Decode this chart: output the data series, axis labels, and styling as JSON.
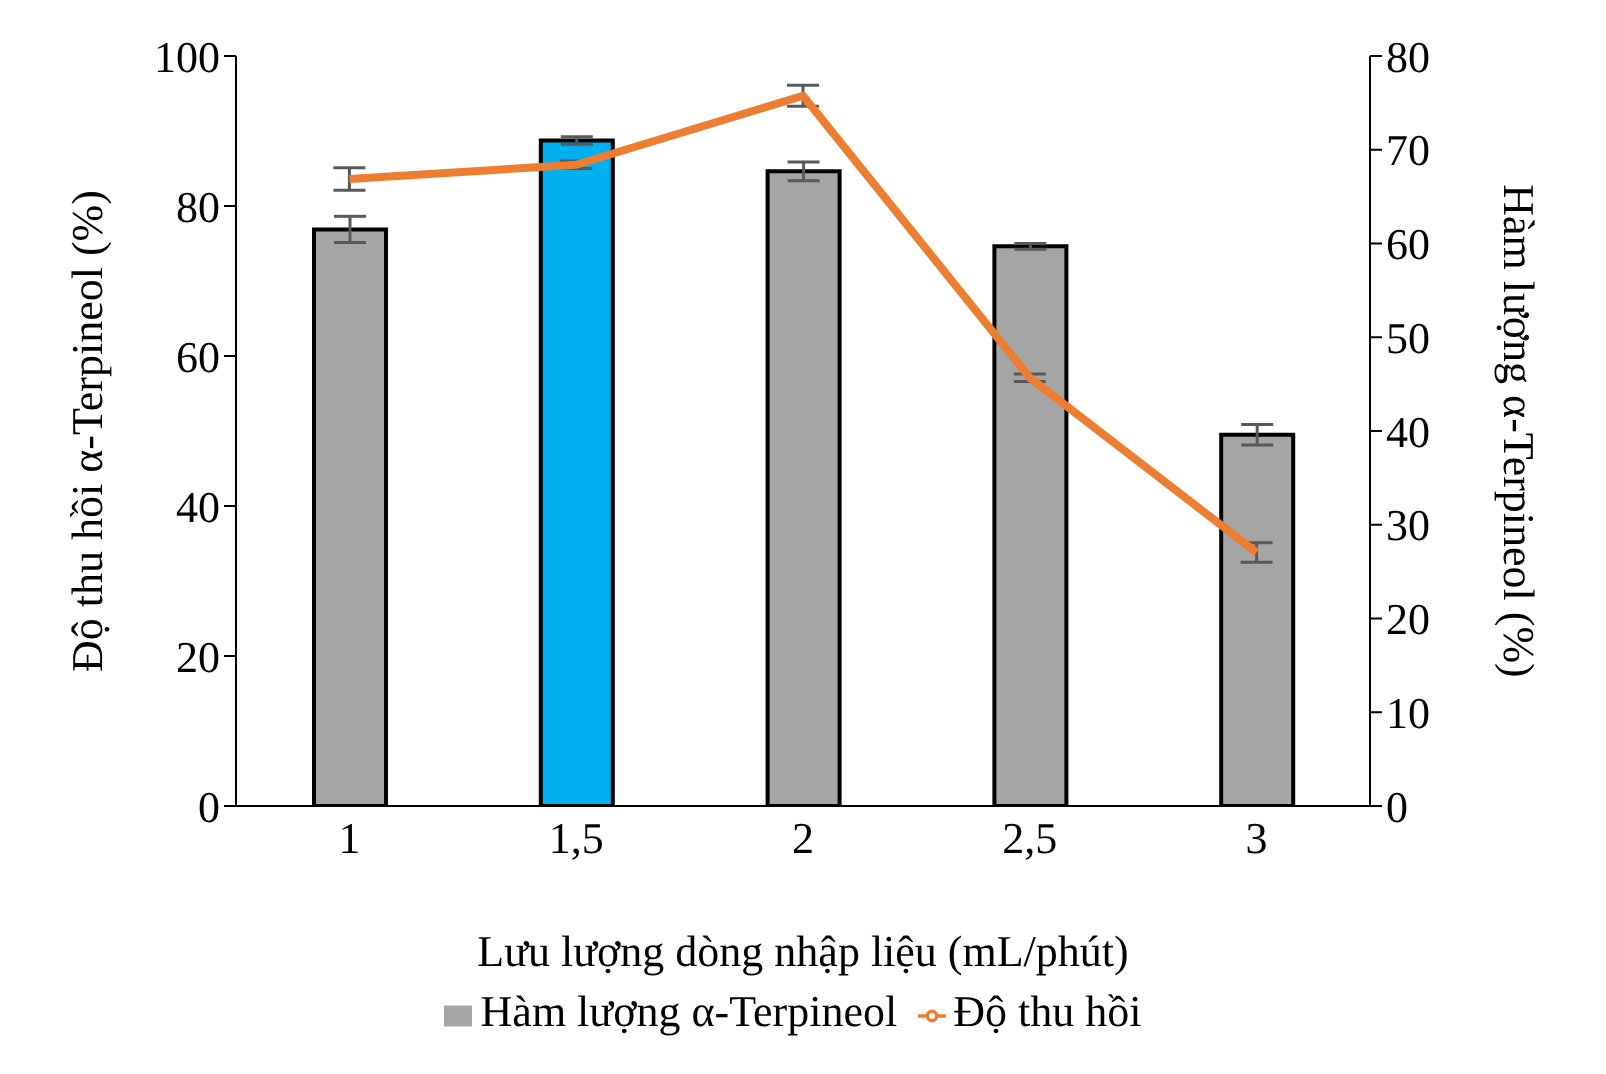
{
  "chart_data": {
    "type": "bar",
    "xlabel": "Lưu lượng dòng nhập liệu (mL/phút)",
    "ylabel": "Độ thu hồi α-Terpineol (%)",
    "y2label": "Hàm lượng α-Terpineol (%)",
    "categories": [
      "1",
      "1,5",
      "2",
      "2,5",
      "3"
    ],
    "series": [
      {
        "axis": "y2",
        "name": "Hàm lượng α-Terpineol",
        "color": "#a5a5a5",
        "colors": [
          "#a5a5a5",
          "#00b0f0",
          "#a5a5a5",
          "#a5a5a5",
          "#a5a5a5"
        ],
        "values": [
          61.5,
          71,
          67.7,
          59.7,
          39.6
        ],
        "errors": [
          1.4,
          0.4,
          1,
          0.3,
          1.1
        ]
      },
      {
        "type": "line",
        "name": "Độ thu hồi",
        "color": "#ed7d31",
        "values": [
          83.6,
          85.5,
          94.7,
          57.1,
          33.8
        ],
        "errors": [
          1.5,
          0.5,
          1.4,
          0.5,
          1.3
        ]
      }
    ],
    "ylim": [
      0,
      100
    ],
    "yticks": [
      0,
      20,
      40,
      60,
      80,
      100
    ],
    "y2lim": [
      0,
      80
    ],
    "y2ticks": [
      0,
      10,
      20,
      30,
      40,
      50,
      60,
      70,
      80
    ],
    "grid": false,
    "legend": "bottom",
    "marker": "none",
    "line_style": "solid"
  }
}
